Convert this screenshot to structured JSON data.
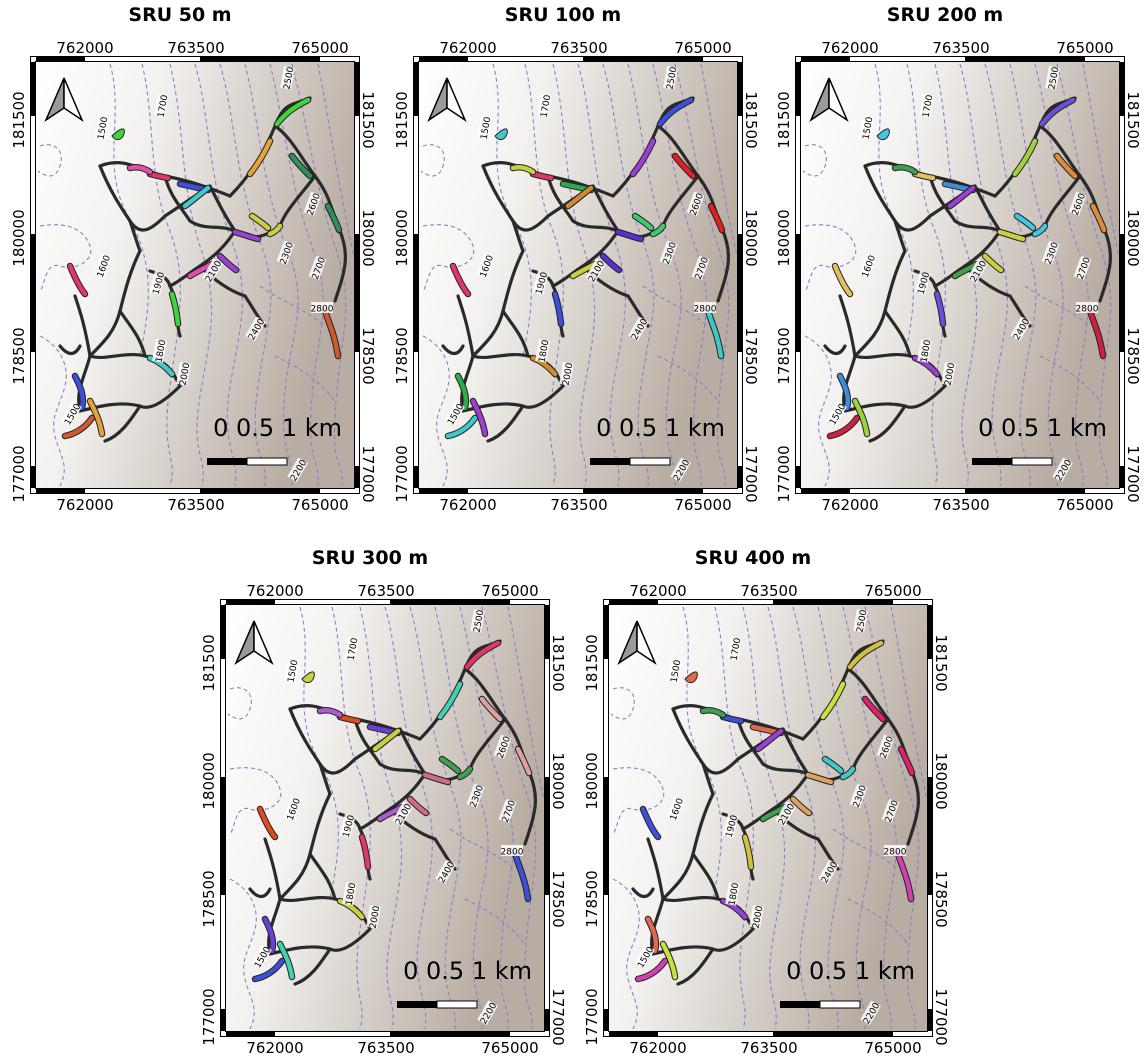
{
  "panels": [
    {
      "title": "SRU 50 m",
      "palette": [
        "#3fd43a",
        "#e0376b",
        "#3b4fd8",
        "#e3a33a",
        "#41c8c8",
        "#9b3fd0",
        "#c8d040",
        "#2f8f5a",
        "#d05a2f",
        "#e04fb0"
      ]
    },
    {
      "title": "SRU 100 m",
      "palette": [
        "#e02020",
        "#3ec8c8",
        "#c8d040",
        "#3b4fd8",
        "#e0376b",
        "#2faa4a",
        "#9b3fd0",
        "#d08a2f",
        "#5a2fd0",
        "#40c870"
      ]
    },
    {
      "title": "SRU 200 m",
      "palette": [
        "#9b3fd0",
        "#c8d040",
        "#41c8e0",
        "#e08a3a",
        "#d02040",
        "#3fa050",
        "#6a4fd8",
        "#e0c060",
        "#3b8fd8",
        "#a0d040"
      ]
    },
    {
      "title": "SRU 300 m",
      "palette": [
        "#e04a20",
        "#6a3fd8",
        "#41d0b0",
        "#c8d040",
        "#d06a8a",
        "#3fa050",
        "#e0a0a0",
        "#3b4fd8",
        "#b05ad0",
        "#e0376b"
      ]
    },
    {
      "title": "SRU 400 m",
      "palette": [
        "#d040b0",
        "#3fa050",
        "#d0c040",
        "#3b4fd8",
        "#e06a50",
        "#c8e040",
        "#9b3fd0",
        "#e0a060",
        "#41c8c8",
        "#e0206a"
      ]
    }
  ],
  "axes": {
    "x_ticks": [
      "762000",
      "763500",
      "765000"
    ],
    "y_ticks": [
      "177000",
      "178500",
      "180000",
      "181500"
    ]
  },
  "scalebar": {
    "label": "0  0.5  1 km"
  },
  "contours": {
    "color": "#8a7fc8",
    "labels": [
      "2500",
      "1700",
      "1500",
      "2600",
      "1600",
      "2700",
      "2300",
      "2100",
      "1900",
      "2800",
      "2400",
      "1800",
      "2000",
      "1500",
      "2200"
    ]
  },
  "colors": {
    "terrain_light": "#ffffff",
    "terrain_dark": "#b8ada2",
    "trail_outline": "#2a2a2a",
    "frame": "#000000"
  }
}
